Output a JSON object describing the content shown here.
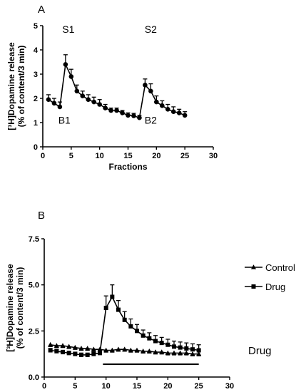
{
  "chart_data": [
    {
      "panel": "A",
      "type": "line",
      "xlabel": "Fractions",
      "ylabel_lines": [
        "[³H]Dopamine release",
        "(% of content/3 min)"
      ],
      "xlim": [
        0,
        30
      ],
      "ylim": [
        0,
        5
      ],
      "xticks": [
        0,
        5,
        10,
        15,
        20,
        25,
        30
      ],
      "yticks": [
        0,
        1,
        2,
        3,
        4,
        5
      ],
      "ytick_labels": [
        "0",
        "1",
        "2",
        "3",
        "4",
        "5"
      ],
      "annotations": [
        {
          "text": "S1",
          "x": 4.5,
          "y": 4.7
        },
        {
          "text": "S2",
          "x": 19,
          "y": 4.7
        },
        {
          "text": "B1",
          "x": 3.8,
          "y": 0.95
        },
        {
          "text": "B2",
          "x": 19,
          "y": 0.95
        }
      ],
      "series": [
        {
          "marker": "circle",
          "x": [
            1,
            2,
            3,
            4,
            5,
            6,
            7,
            8,
            9,
            10,
            11,
            12,
            13,
            14,
            15,
            16,
            17,
            18,
            19,
            20,
            21,
            22,
            23,
            24,
            25
          ],
          "y": [
            1.95,
            1.8,
            1.65,
            3.4,
            2.9,
            2.3,
            2.1,
            1.95,
            1.85,
            1.75,
            1.6,
            1.5,
            1.5,
            1.4,
            1.3,
            1.28,
            1.2,
            2.55,
            2.3,
            1.85,
            1.7,
            1.55,
            1.45,
            1.4,
            1.3
          ],
          "err": [
            0.2,
            0.2,
            0.2,
            0.4,
            0.3,
            0.25,
            0.2,
            0.2,
            0.2,
            0.2,
            0.15,
            0.1,
            0.1,
            0.1,
            0.1,
            0.1,
            0.1,
            0.25,
            0.3,
            0.25,
            0.2,
            0.2,
            0.2,
            0.15,
            0.15
          ]
        }
      ]
    },
    {
      "panel": "B",
      "type": "line",
      "xlabel": "Fractions",
      "ylabel_lines": [
        "[³H]Dopamine release",
        "(% of content/3 min)"
      ],
      "xlim": [
        0,
        30
      ],
      "ylim": [
        0,
        7.5
      ],
      "xticks": [
        0,
        5,
        10,
        15,
        20,
        25,
        30
      ],
      "yticks": [
        0,
        2.5,
        5,
        7.5
      ],
      "ytick_labels": [
        "0.0",
        "2.5",
        "5.0",
        "7.5"
      ],
      "legend_position": "top-right",
      "drug_bar": {
        "label": "Drug",
        "x_start": 9.5,
        "x_end": 25
      },
      "series": [
        {
          "name": "Control",
          "marker": "triangle",
          "x": [
            1,
            2,
            3,
            4,
            5,
            6,
            7,
            8,
            9,
            10,
            11,
            12,
            13,
            14,
            15,
            16,
            17,
            18,
            19,
            20,
            21,
            22,
            23,
            24,
            25
          ],
          "y": [
            1.75,
            1.7,
            1.7,
            1.65,
            1.6,
            1.55,
            1.55,
            1.5,
            1.5,
            1.45,
            1.45,
            1.5,
            1.5,
            1.45,
            1.45,
            1.4,
            1.4,
            1.35,
            1.35,
            1.3,
            1.3,
            1.3,
            1.3,
            1.25,
            1.25
          ],
          "err": [
            0.1,
            0.1,
            0.1,
            0.1,
            0.1,
            0.1,
            0.1,
            0.1,
            0.1,
            0.1,
            0.1,
            0.1,
            0.1,
            0.1,
            0.1,
            0.1,
            0.1,
            0.1,
            0.1,
            0.1,
            0.1,
            0.1,
            0.1,
            0.1,
            0.1
          ],
          "err_dir": "down"
        },
        {
          "name": "Drug",
          "marker": "square",
          "x": [
            1,
            2,
            3,
            4,
            5,
            6,
            7,
            8,
            9,
            10,
            11,
            12,
            13,
            14,
            15,
            16,
            17,
            18,
            19,
            20,
            21,
            22,
            23,
            24,
            25
          ],
          "y": [
            1.45,
            1.4,
            1.35,
            1.3,
            1.25,
            1.2,
            1.2,
            1.25,
            1.3,
            3.75,
            4.35,
            3.65,
            3.1,
            2.75,
            2.5,
            2.25,
            2.1,
            1.95,
            1.85,
            1.75,
            1.65,
            1.6,
            1.55,
            1.5,
            1.45
          ],
          "err": [
            0.1,
            0.1,
            0.1,
            0.1,
            0.1,
            0.1,
            0.1,
            0.1,
            0.1,
            0.65,
            0.65,
            0.5,
            0.45,
            0.4,
            0.35,
            0.3,
            0.3,
            0.3,
            0.3,
            0.3,
            0.3,
            0.3,
            0.3,
            0.3,
            0.3
          ],
          "err_dir": "up"
        }
      ]
    }
  ]
}
